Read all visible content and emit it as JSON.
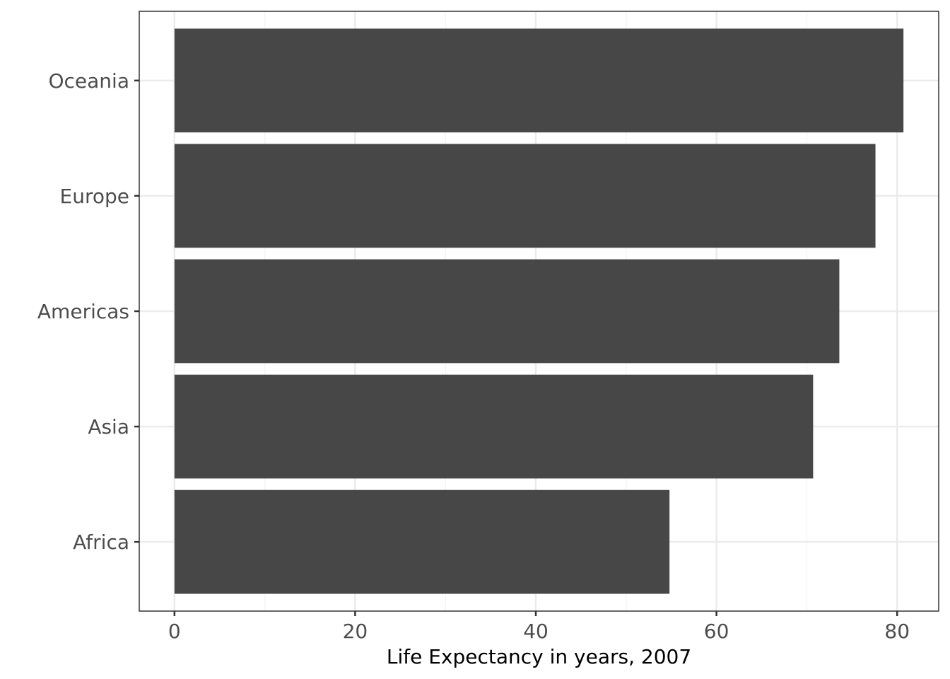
{
  "chart_data": {
    "type": "bar",
    "orientation": "horizontal",
    "categories": [
      "Africa",
      "Asia",
      "Americas",
      "Europe",
      "Oceania"
    ],
    "values": [
      54.8,
      70.7,
      73.6,
      77.6,
      80.7
    ],
    "title": "",
    "xlabel": "Life Expectancy in years, 2007",
    "ylabel": "",
    "xlim": [
      -3.9,
      84.6
    ],
    "xticks": [
      0,
      20,
      40,
      60,
      80
    ],
    "xtick_labels": [
      "0",
      "20",
      "40",
      "60",
      "80"
    ],
    "grid": true,
    "colors": {
      "bar": "#474747",
      "grid_major": "#ebebeb",
      "grid_minor": "#f5f5f5",
      "panel_border": "#333333"
    }
  }
}
